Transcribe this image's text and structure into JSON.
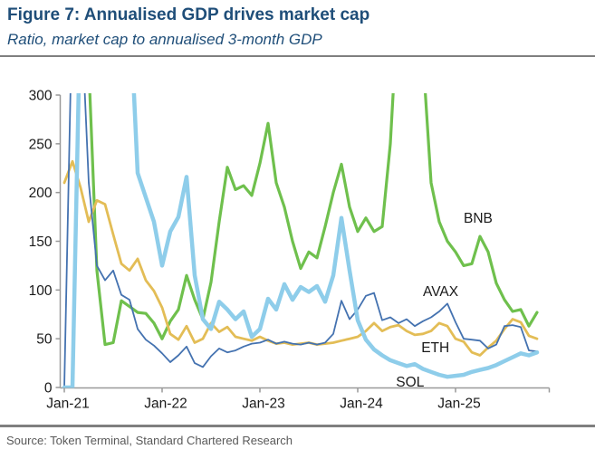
{
  "header": {
    "title": "Figure 7: Annualised GDP drives market cap",
    "subtitle": "Ratio, market cap to annualised 3-month GDP"
  },
  "footer": {
    "source": "Source: Token Terminal, Standard Chartered Research"
  },
  "chart_data": {
    "type": "line",
    "title": "Figure 7: Annualised GDP drives market cap",
    "subtitle": "Ratio, market cap to annualised 3-month GDP",
    "xlabel": "",
    "ylabel": "",
    "grid": false,
    "legend_position": "inline-labels",
    "ylim": [
      0,
      300
    ],
    "y_ticks": [
      0,
      50,
      100,
      150,
      200,
      250,
      300
    ],
    "x_tick_labels": [
      "Jan-21",
      "Jan-22",
      "Jan-23",
      "Jan-24",
      "Jan-25"
    ],
    "x_tick_month_index": [
      0,
      12,
      24,
      36,
      48
    ],
    "clip_note": "Values above 300 run off the top of the plot and are clipped",
    "months": [
      "Jan-21",
      "Feb-21",
      "Mar-21",
      "Apr-21",
      "May-21",
      "Jun-21",
      "Jul-21",
      "Aug-21",
      "Sep-21",
      "Oct-21",
      "Nov-21",
      "Dec-21",
      "Jan-22",
      "Feb-22",
      "Mar-22",
      "Apr-22",
      "May-22",
      "Jun-22",
      "Jul-22",
      "Aug-22",
      "Sep-22",
      "Oct-22",
      "Nov-22",
      "Dec-22",
      "Jan-23",
      "Feb-23",
      "Mar-23",
      "Apr-23",
      "May-23",
      "Jun-23",
      "Jul-23",
      "Aug-23",
      "Sep-23",
      "Oct-23",
      "Nov-23",
      "Dec-23",
      "Jan-24",
      "Feb-24",
      "Mar-24",
      "Apr-24",
      "May-24",
      "Jun-24",
      "Jul-24",
      "Aug-24",
      "Sep-24",
      "Oct-24",
      "Nov-24",
      "Dec-24",
      "Jan-25",
      "Feb-25",
      "Mar-25",
      "Apr-25",
      "May-25",
      "Jun-25",
      "Jul-25",
      "Aug-25",
      "Sep-25",
      "Oct-25",
      "Nov-25"
    ],
    "series": [
      {
        "name": "BNB",
        "color": "#6fc04d",
        "stroke_width": 3.2,
        "values": [
          400,
          400,
          400,
          330,
          120,
          44,
          46,
          89,
          83,
          77,
          76,
          66,
          50,
          68,
          80,
          115,
          90,
          70,
          108,
          170,
          226,
          203,
          207,
          197,
          230,
          271,
          210,
          185,
          150,
          122,
          139,
          133,
          165,
          200,
          229,
          185,
          160,
          174,
          160,
          165,
          250,
          400,
          420,
          410,
          340,
          210,
          170,
          150,
          139,
          125,
          127,
          155,
          139,
          107,
          90,
          78,
          80,
          63,
          77
        ]
      },
      {
        "name": "ETH",
        "color": "#e3bd56",
        "stroke_width": 2.8,
        "values": [
          210,
          232,
          205,
          170,
          192,
          188,
          157,
          127,
          120,
          132,
          110,
          99,
          82,
          55,
          49,
          63,
          46,
          50,
          66,
          57,
          62,
          52,
          50,
          48,
          52,
          48,
          45,
          46,
          44,
          45,
          46,
          44,
          45,
          46,
          48,
          50,
          52,
          58,
          66,
          58,
          62,
          64,
          58,
          54,
          55,
          58,
          66,
          63,
          50,
          47,
          36,
          33,
          41,
          48,
          60,
          70,
          67,
          53,
          50
        ]
      },
      {
        "name": "AVAX",
        "color": "#4472b0",
        "stroke_width": 1.8,
        "values": [
          0,
          400,
          400,
          210,
          125,
          110,
          120,
          95,
          90,
          60,
          49,
          43,
          35,
          26,
          33,
          42,
          25,
          21,
          32,
          40,
          36,
          38,
          42,
          45,
          46,
          49,
          45,
          47,
          45,
          44,
          46,
          44,
          46,
          55,
          89,
          70,
          80,
          94,
          97,
          69,
          72,
          66,
          70,
          63,
          68,
          72,
          78,
          86,
          67,
          50,
          49,
          48,
          40,
          44,
          63,
          64,
          62,
          38,
          37
        ]
      },
      {
        "name": "SOL",
        "color": "#8ecdea",
        "stroke_width": 4.5,
        "values": [
          0,
          0,
          400,
          400,
          400,
          400,
          400,
          400,
          400,
          220,
          195,
          170,
          125,
          160,
          175,
          216,
          115,
          70,
          60,
          88,
          80,
          70,
          78,
          52,
          60,
          91,
          80,
          106,
          90,
          103,
          98,
          104,
          88,
          115,
          174,
          120,
          69,
          49,
          39,
          33,
          28,
          25,
          22,
          24,
          19,
          16,
          13,
          11,
          12,
          13,
          16,
          18,
          20,
          23,
          27,
          31,
          35,
          33,
          36
        ]
      }
    ],
    "annotations": [
      {
        "text": "BNB",
        "month": 49.0,
        "value": 169
      },
      {
        "text": "AVAX",
        "month": 44.0,
        "value": 94
      },
      {
        "text": "ETH",
        "month": 43.8,
        "value": 36
      },
      {
        "text": "SOL",
        "month": 40.7,
        "value": 1
      }
    ],
    "axis_color": "#999999",
    "tick_text_color": "#1a1a1a",
    "annotation_text_color": "#1a1a1a"
  }
}
